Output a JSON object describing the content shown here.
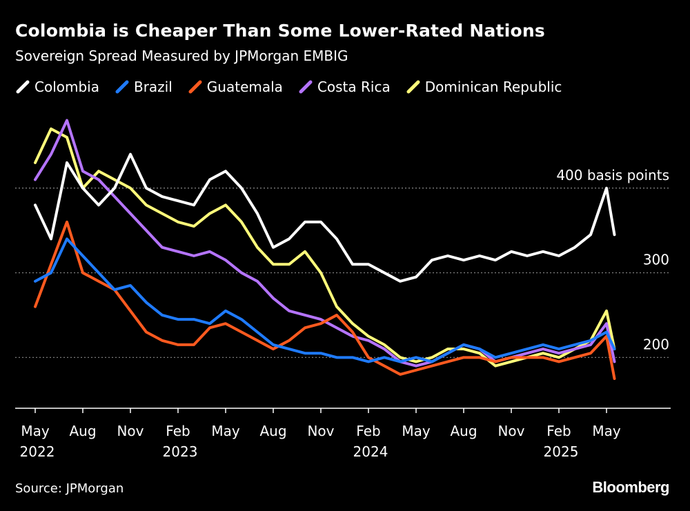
{
  "chart_data": {
    "type": "line",
    "title": "Colombia is Cheaper Than Some Lower-Rated Nations",
    "subtitle": "Sovereign Spread Measured by JPMorgan EMBIG",
    "xlabel": "",
    "ylabel": "",
    "ylim": [
      140,
      500
    ],
    "x_tick_labels": [
      {
        "label": "May",
        "year": "2022",
        "month_index": 0
      },
      {
        "label": "Aug",
        "year": "",
        "month_index": 3
      },
      {
        "label": "Nov",
        "year": "",
        "month_index": 6
      },
      {
        "label": "Feb",
        "year": "2023",
        "month_index": 9
      },
      {
        "label": "May",
        "year": "",
        "month_index": 12
      },
      {
        "label": "Aug",
        "year": "",
        "month_index": 15
      },
      {
        "label": "Nov",
        "year": "",
        "month_index": 18
      },
      {
        "label": "Feb",
        "year": "2024",
        "month_index": 21
      },
      {
        "label": "May",
        "year": "",
        "month_index": 24
      },
      {
        "label": "Aug",
        "year": "",
        "month_index": 27
      },
      {
        "label": "Nov",
        "year": "",
        "month_index": 30
      },
      {
        "label": "Feb",
        "year": "2025",
        "month_index": 33
      },
      {
        "label": "May",
        "year": "",
        "month_index": 36
      }
    ],
    "gridlines": [
      {
        "value": 400,
        "label": "400 basis points"
      },
      {
        "value": 300,
        "label": "300"
      },
      {
        "value": 200,
        "label": "200"
      }
    ],
    "x_months": [
      0,
      1,
      2,
      3,
      4,
      5,
      6,
      7,
      8,
      9,
      10,
      11,
      12,
      13,
      14,
      15,
      16,
      17,
      18,
      19,
      20,
      21,
      22,
      23,
      24,
      25,
      26,
      27,
      28,
      29,
      30,
      31,
      32,
      33,
      34,
      35,
      36,
      36.5
    ],
    "series": [
      {
        "name": "Colombia",
        "color": "#ffffff",
        "values": [
          380,
          340,
          430,
          400,
          380,
          400,
          440,
          400,
          390,
          385,
          380,
          410,
          420,
          400,
          370,
          330,
          340,
          360,
          360,
          340,
          310,
          310,
          300,
          290,
          295,
          315,
          320,
          315,
          320,
          315,
          325,
          320,
          325,
          320,
          330,
          345,
          400,
          345
        ]
      },
      {
        "name": "Brazil",
        "color": "#1f7bff",
        "values": [
          290,
          300,
          340,
          320,
          300,
          280,
          285,
          265,
          250,
          245,
          245,
          240,
          255,
          245,
          230,
          215,
          210,
          205,
          205,
          200,
          200,
          195,
          200,
          195,
          200,
          195,
          205,
          215,
          210,
          200,
          205,
          210,
          215,
          210,
          215,
          220,
          230,
          210
        ]
      },
      {
        "name": "Guatemala",
        "color": "#ff5a1f",
        "values": [
          260,
          310,
          360,
          300,
          290,
          280,
          255,
          230,
          220,
          215,
          215,
          235,
          240,
          230,
          220,
          210,
          220,
          235,
          240,
          250,
          230,
          200,
          190,
          180,
          185,
          190,
          195,
          200,
          200,
          195,
          200,
          200,
          200,
          195,
          200,
          205,
          225,
          175
        ]
      },
      {
        "name": "Costa Rica",
        "color": "#b574ff",
        "values": [
          410,
          440,
          480,
          420,
          410,
          390,
          370,
          350,
          330,
          325,
          320,
          325,
          315,
          300,
          290,
          270,
          255,
          250,
          245,
          235,
          225,
          220,
          210,
          195,
          190,
          195,
          205,
          215,
          210,
          195,
          200,
          205,
          210,
          205,
          210,
          215,
          240,
          195
        ]
      },
      {
        "name": "Dominican Republic",
        "color": "#fffb7a",
        "values": [
          430,
          470,
          460,
          400,
          420,
          410,
          400,
          380,
          370,
          360,
          355,
          370,
          380,
          360,
          330,
          310,
          310,
          325,
          300,
          260,
          240,
          225,
          215,
          200,
          195,
          200,
          210,
          210,
          205,
          190,
          195,
          200,
          205,
          200,
          210,
          220,
          255,
          210
        ]
      }
    ],
    "legend_position": "top-left",
    "grid": true
  },
  "source_text": "Source: JPMorgan",
  "brand_text": "Bloomberg"
}
